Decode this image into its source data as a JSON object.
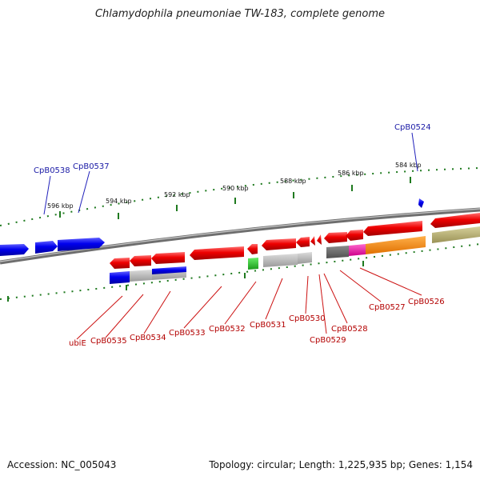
{
  "title": "Chlamydophila pneumoniae TW-183, complete genome",
  "footer": {
    "accession": "Accession: NC_005043",
    "topology": "Topology: circular; Length: 1,225,935 bp; Genes: 1,154"
  },
  "scale_labels": [
    "596 kbp",
    "594 kbp",
    "592 kbp",
    "590 kbp",
    "588 kbp",
    "586 kbp",
    "584 kbp"
  ],
  "top_gene_labels": [
    "CpB0538",
    "CpB0537",
    "CpB0524"
  ],
  "bottom_gene_labels": [
    "ubiE",
    "CpB0535",
    "CpB0534",
    "CpB0533",
    "CpB0532",
    "CpB0531",
    "CpB0530",
    "CpB0529",
    "CpB0528",
    "CpB0527",
    "CpB0526"
  ],
  "colors": {
    "forward_strand": "#0000ee",
    "reverse_strand": "#ee0000",
    "backbone": "#808080",
    "tick": "#1f7a1f",
    "grey_feature": "#b0b0b0",
    "green_feature": "#33cc33",
    "magenta_feature": "#ee22aa",
    "orange_feature": "#ff8c00",
    "olive_feature": "#b5ad6a"
  }
}
